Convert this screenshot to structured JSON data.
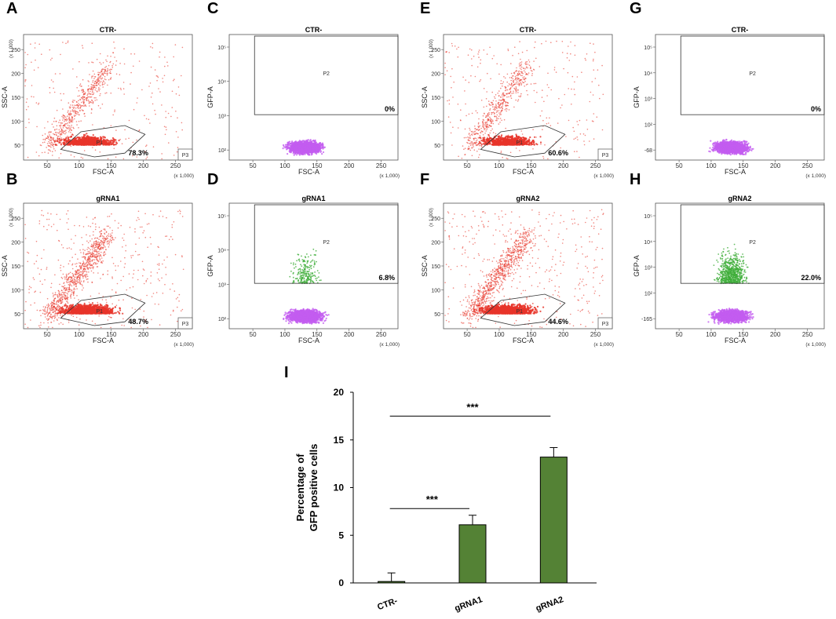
{
  "figure": {
    "panels": [
      {
        "id": "A",
        "letter": "A",
        "kind": "ssc",
        "title": "CTR-",
        "ylabel": "SSC-A",
        "xlabel": "FSC-A",
        "gate_percent": "78.3%",
        "gate_name": "P1",
        "corner_label": "P3",
        "scale_label": "(x 1,000)",
        "yticks": [
          "50",
          "100",
          "150",
          "200",
          "250"
        ],
        "xticks": [
          "50",
          "100",
          "150",
          "200",
          "250"
        ],
        "dot_color": "#e8352a",
        "dot_density": "medium",
        "seed": 11
      },
      {
        "id": "B",
        "letter": "B",
        "kind": "ssc",
        "title": "gRNA1",
        "ylabel": "SSC-A",
        "xlabel": "FSC-A",
        "gate_percent": "48.7%",
        "gate_name": "P1",
        "corner_label": "P3",
        "scale_label": "(x 1,000)",
        "yticks": [
          "50",
          "100",
          "150",
          "200",
          "250"
        ],
        "xticks": [
          "50",
          "100",
          "150",
          "200",
          "250"
        ],
        "dot_color": "#e8352a",
        "dot_density": "high",
        "seed": 23
      },
      {
        "id": "C",
        "letter": "C",
        "kind": "gfp",
        "title": "CTR-",
        "ylabel": "GFP-A",
        "xlabel": "FSC-A",
        "gate_percent": "0%",
        "gate_name": "P2",
        "scale_label": "(x 1,000)",
        "yticks": [
          "10²",
          "10³",
          "10⁴",
          "10⁵"
        ],
        "xticks": [
          "50",
          "100",
          "150",
          "200",
          "250"
        ],
        "dot_color": "#c35cf0",
        "green_fraction": 0,
        "seed": 37
      },
      {
        "id": "D",
        "letter": "D",
        "kind": "gfp",
        "title": "gRNA1",
        "ylabel": "GFP-A",
        "xlabel": "FSC-A",
        "gate_percent": "6.8%",
        "gate_name": "P2",
        "scale_label": "(x 1,000)",
        "yticks": [
          "10²",
          "10³",
          "10⁴",
          "10⁵"
        ],
        "xticks": [
          "50",
          "100",
          "150",
          "200",
          "250"
        ],
        "dot_color": "#c35cf0",
        "green_fraction": 0.068,
        "seed": 41
      },
      {
        "id": "E",
        "letter": "E",
        "kind": "ssc",
        "title": "CTR-",
        "ylabel": "SSC-A",
        "xlabel": "FSC-A",
        "gate_percent": "60.6%",
        "gate_name": "P1",
        "corner_label": "P3",
        "scale_label": "(x 1,000)",
        "yticks": [
          "50",
          "100",
          "150",
          "200",
          "250"
        ],
        "xticks": [
          "50",
          "100",
          "150",
          "200",
          "250"
        ],
        "dot_color": "#e8352a",
        "dot_density": "medium",
        "seed": 53
      },
      {
        "id": "F",
        "letter": "F",
        "kind": "ssc",
        "title": "gRNA2",
        "ylabel": "SSC-A",
        "xlabel": "FSC-A",
        "gate_percent": "44.6%",
        "gate_name": "P1",
        "corner_label": "P3",
        "scale_label": "(x 1,000)",
        "yticks": [
          "50",
          "100",
          "150",
          "200",
          "250"
        ],
        "xticks": [
          "50",
          "100",
          "150",
          "200",
          "250"
        ],
        "dot_color": "#e8352a",
        "dot_density": "high",
        "seed": 67
      },
      {
        "id": "G",
        "letter": "G",
        "kind": "gfp",
        "title": "CTR-",
        "ylabel": "GFP-A",
        "xlabel": "FSC-A",
        "gate_percent": "0%",
        "gate_name": "P2",
        "scale_label": "(x 1,000)",
        "yticks": [
          "-68",
          "10²",
          "10³",
          "10⁴",
          "10⁵"
        ],
        "xticks": [
          "50",
          "100",
          "150",
          "200",
          "250"
        ],
        "dot_color": "#c35cf0",
        "green_fraction": 0,
        "seed": 71
      },
      {
        "id": "H",
        "letter": "H",
        "kind": "gfp",
        "title": "gRNA2",
        "ylabel": "GFP-A",
        "xlabel": "FSC-A",
        "gate_percent": "22.0%",
        "gate_name": "P2",
        "scale_label": "(x 1,000)",
        "yticks": [
          "-165",
          "10²",
          "10³",
          "10⁴",
          "10⁵"
        ],
        "xticks": [
          "50",
          "100",
          "150",
          "200",
          "250"
        ],
        "dot_color": "#c35cf0",
        "green_fraction": 0.22,
        "seed": 83
      }
    ],
    "green_color": "#3fae3a",
    "gate_color": "#333333"
  },
  "chart_data": {
    "type": "bar",
    "panel_letter": "I",
    "categories": [
      "CTR-",
      "gRNA1",
      "gRNA2"
    ],
    "values": [
      0.15,
      6.1,
      13.2
    ],
    "errors": [
      0.9,
      1.0,
      1.0
    ],
    "ylabel_line1": "Percentage of",
    "ylabel_line2": "GFP positive cells",
    "ylim": [
      0,
      20
    ],
    "yticks": [
      "0",
      "5",
      "10",
      "15",
      "20"
    ],
    "bar_color": "#548235",
    "significance": [
      {
        "from": "CTR-",
        "to": "gRNA1",
        "label": "***"
      },
      {
        "from": "CTR-",
        "to": "gRNA2",
        "label": "***"
      }
    ]
  }
}
